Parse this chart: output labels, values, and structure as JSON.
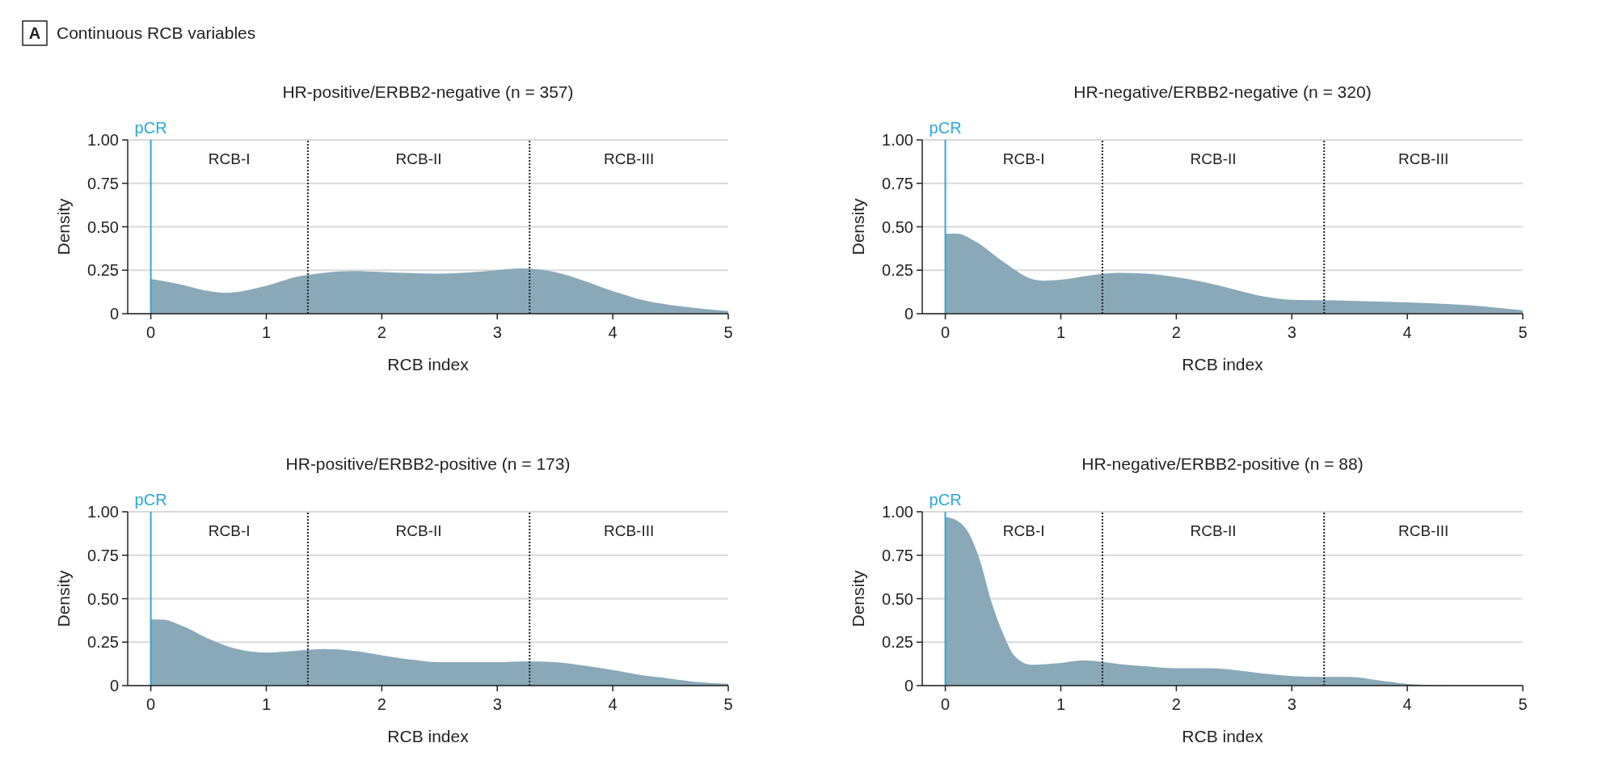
{
  "chart_data": [
    {
      "type": "area",
      "title": "HR-positive/ERBB2-negative (n = 357)",
      "xlabel": "RCB index",
      "ylabel": "Density",
      "annotations": [
        "A",
        "Continuous RCB variables",
        "RCB-I",
        "RCB-II",
        "RCB-III"
      ],
      "x": [
        0,
        0.25,
        0.5,
        0.65,
        1,
        1.25,
        1.5,
        1.75,
        2,
        2.5,
        3,
        3.2,
        3.5,
        3.75,
        4,
        4.25,
        4.5,
        4.75,
        5
      ],
      "series": [
        {
          "color": "#8aa9b8",
          "values": [
            0.2,
            0.17,
            0.13,
            0.12,
            0.16,
            0.21,
            0.235,
            0.245,
            0.24,
            0.23,
            0.25,
            0.26,
            0.24,
            0.19,
            0.13,
            0.08,
            0.05,
            0.03,
            0.015
          ]
        }
      ],
      "xlim": [
        -0.2,
        5
      ],
      "ylim": [
        0,
        1
      ],
      "xticks": [
        0,
        1,
        2,
        3,
        4,
        5
      ],
      "yticks": [
        {
          "value": 0,
          "label": "0"
        },
        {
          "value": 0.25,
          "label": "0.25"
        },
        {
          "value": 0.5,
          "label": "0.50"
        },
        {
          "value": 0.75,
          "label": "0.75"
        },
        {
          "value": 1,
          "label": "1.00"
        }
      ],
      "grid": "y",
      "ref_lines": [
        {
          "axis": "x",
          "value": 0,
          "label": "pCR",
          "color": "#2aa8dc",
          "line_style": "solid"
        },
        {
          "axis": "x",
          "value": 1.36,
          "color": "#222222",
          "line_style": "dotted"
        },
        {
          "axis": "x",
          "value": 3.28,
          "color": "#222222",
          "line_style": "dotted"
        }
      ]
    },
    {
      "type": "area",
      "title": "HR-negative/ERBB2-negative (n = 320)",
      "xlabel": "RCB index",
      "ylabel": "Density",
      "annotations": [
        "RCB-I",
        "RCB-II",
        "RCB-III"
      ],
      "x": [
        0,
        0.1,
        0.25,
        0.5,
        0.75,
        0.85,
        1,
        1.25,
        1.5,
        1.75,
        2,
        2.25,
        2.5,
        2.75,
        3,
        3.5,
        4,
        4.5,
        5
      ],
      "series": [
        {
          "color": "#8aa9b8",
          "values": [
            0.46,
            0.46,
            0.42,
            0.3,
            0.2,
            0.19,
            0.195,
            0.22,
            0.235,
            0.23,
            0.21,
            0.18,
            0.14,
            0.1,
            0.08,
            0.075,
            0.065,
            0.05,
            0.02
          ]
        }
      ],
      "xlim": [
        -0.2,
        5
      ],
      "ylim": [
        0,
        1
      ],
      "xticks": [
        0,
        1,
        2,
        3,
        4,
        5
      ],
      "yticks": [
        {
          "value": 0,
          "label": "0"
        },
        {
          "value": 0.25,
          "label": "0.25"
        },
        {
          "value": 0.5,
          "label": "0.50"
        },
        {
          "value": 0.75,
          "label": "0.75"
        },
        {
          "value": 1,
          "label": "1.00"
        }
      ],
      "grid": "y",
      "ref_lines": [
        {
          "axis": "x",
          "value": 0,
          "label": "pCR",
          "color": "#2aa8dc",
          "line_style": "solid"
        },
        {
          "axis": "x",
          "value": 1.36,
          "color": "#222222",
          "line_style": "dotted"
        },
        {
          "axis": "x",
          "value": 3.28,
          "color": "#222222",
          "line_style": "dotted"
        }
      ]
    },
    {
      "type": "area",
      "title": "HR-positive/ERBB2-positive (n = 173)",
      "xlabel": "RCB index",
      "ylabel": "Density",
      "annotations": [
        "RCB-I",
        "RCB-II",
        "RCB-III"
      ],
      "x": [
        0,
        0.1,
        0.25,
        0.5,
        0.75,
        1,
        1.25,
        1.5,
        1.75,
        2,
        2.25,
        2.5,
        3,
        3.25,
        3.5,
        3.75,
        4,
        4.25,
        4.5,
        4.75,
        5
      ],
      "series": [
        {
          "color": "#8aa9b8",
          "values": [
            0.38,
            0.38,
            0.35,
            0.27,
            0.21,
            0.19,
            0.2,
            0.21,
            0.2,
            0.175,
            0.15,
            0.135,
            0.135,
            0.14,
            0.135,
            0.115,
            0.09,
            0.06,
            0.04,
            0.02,
            0.01
          ]
        }
      ],
      "xlim": [
        -0.2,
        5
      ],
      "ylim": [
        0,
        1
      ],
      "xticks": [
        0,
        1,
        2,
        3,
        4,
        5
      ],
      "yticks": [
        {
          "value": 0,
          "label": "0"
        },
        {
          "value": 0.25,
          "label": "0.25"
        },
        {
          "value": 0.5,
          "label": "0.50"
        },
        {
          "value": 0.75,
          "label": "0.75"
        },
        {
          "value": 1,
          "label": "1.00"
        }
      ],
      "grid": "y",
      "ref_lines": [
        {
          "axis": "x",
          "value": 0,
          "label": "pCR",
          "color": "#2aa8dc",
          "line_style": "solid"
        },
        {
          "axis": "x",
          "value": 1.36,
          "color": "#222222",
          "line_style": "dotted"
        },
        {
          "axis": "x",
          "value": 3.28,
          "color": "#222222",
          "line_style": "dotted"
        }
      ]
    },
    {
      "type": "area",
      "title": "HR-negative/ERBB2-positive (n = 88)",
      "xlabel": "RCB index",
      "ylabel": "Density",
      "annotations": [
        "RCB-I",
        "RCB-II",
        "RCB-III"
      ],
      "x": [
        0,
        0.1,
        0.2,
        0.3,
        0.4,
        0.5,
        0.6,
        0.75,
        1,
        1.2,
        1.5,
        1.75,
        2,
        2.3,
        2.5,
        2.75,
        3,
        3.25,
        3.5,
        3.75,
        4,
        4.25,
        4.5,
        5
      ],
      "series": [
        {
          "color": "#8aa9b8",
          "values": [
            0.97,
            0.95,
            0.88,
            0.72,
            0.48,
            0.3,
            0.17,
            0.12,
            0.13,
            0.145,
            0.125,
            0.11,
            0.1,
            0.1,
            0.09,
            0.07,
            0.055,
            0.05,
            0.05,
            0.03,
            0.01,
            0.002,
            0,
            0
          ]
        }
      ],
      "xlim": [
        -0.2,
        5
      ],
      "ylim": [
        0,
        1
      ],
      "xticks": [
        0,
        1,
        2,
        3,
        4,
        5
      ],
      "yticks": [
        {
          "value": 0,
          "label": "0"
        },
        {
          "value": 0.25,
          "label": "0.25"
        },
        {
          "value": 0.5,
          "label": "0.50"
        },
        {
          "value": 0.75,
          "label": "0.75"
        },
        {
          "value": 1,
          "label": "1.00"
        }
      ],
      "grid": "y",
      "ref_lines": [
        {
          "axis": "x",
          "value": 0,
          "label": "pCR",
          "color": "#2aa8dc",
          "line_style": "solid"
        },
        {
          "axis": "x",
          "value": 1.36,
          "color": "#222222",
          "line_style": "dotted"
        },
        {
          "axis": "x",
          "value": 3.28,
          "color": "#222222",
          "line_style": "dotted"
        }
      ]
    }
  ]
}
